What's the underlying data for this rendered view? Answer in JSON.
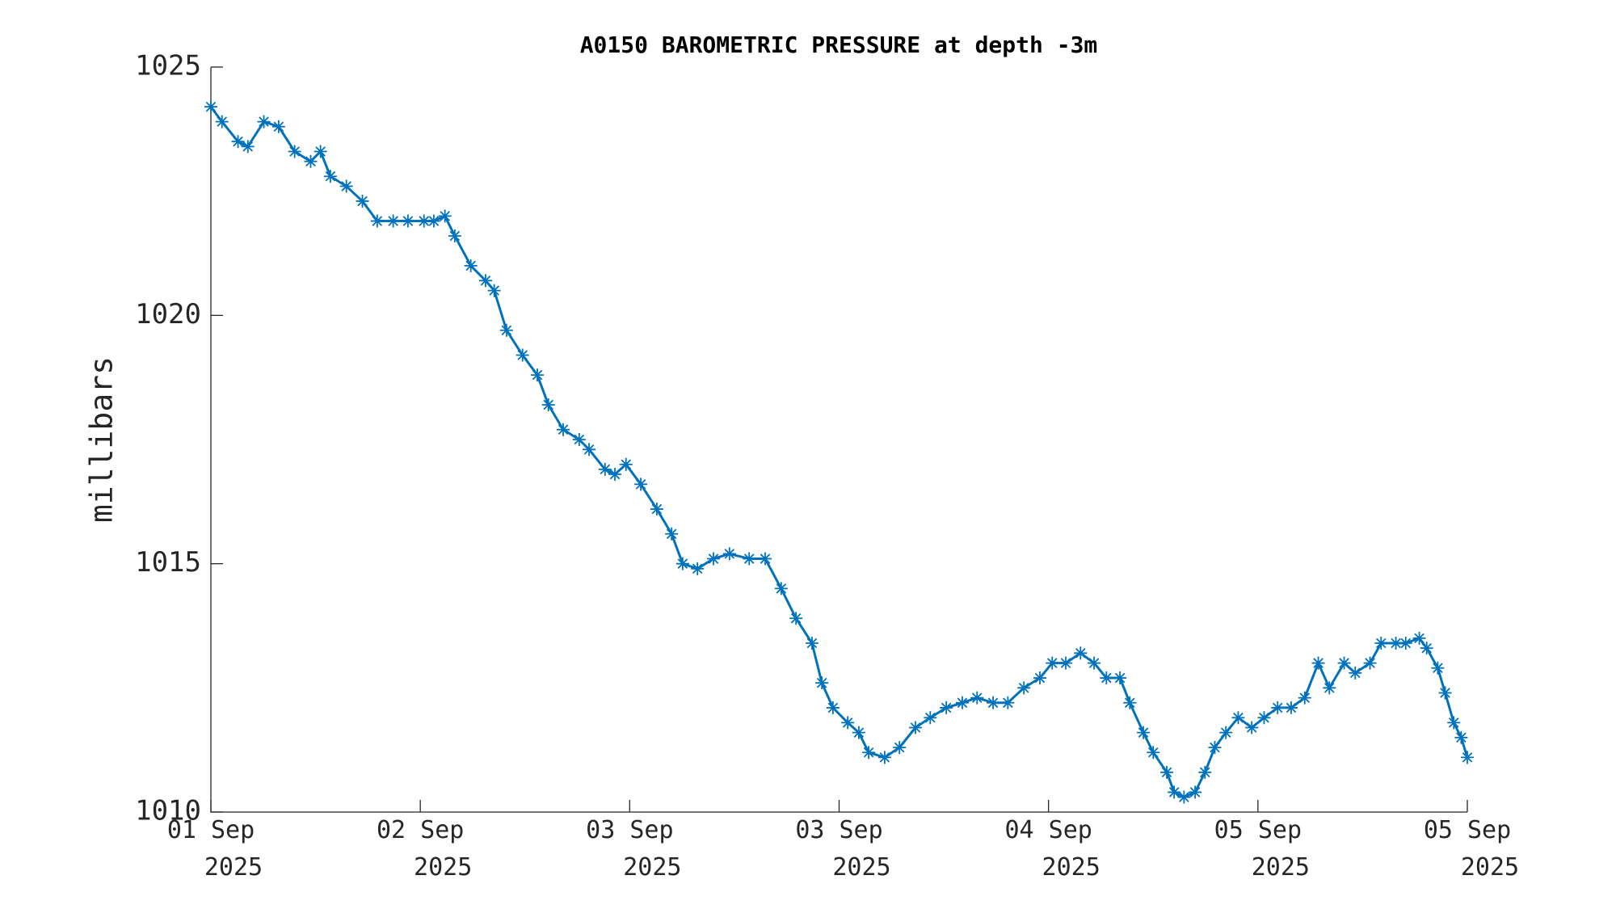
{
  "chart_data": {
    "type": "scatter",
    "title": "A0150 BAROMETRIC PRESSURE at depth -3m",
    "y_label": "millibars",
    "marker": "star",
    "color": "#0072bd",
    "x": [
      0,
      0.9,
      2.2,
      3.0,
      4.3,
      5.5,
      6.8,
      8.1,
      8.9,
      9.7,
      11.0,
      12.3,
      13.5,
      14.8,
      16.0,
      17.3,
      18.1,
      19.0,
      19.8,
      21.1,
      22.3,
      23.0,
      24.0,
      25.3,
      26.5,
      27.4,
      28.6,
      29.9,
      30.7,
      32.0,
      32.8,
      33.7,
      34.9,
      36.2,
      37.4,
      38.3,
      39.5,
      40.8,
      42.1,
      43.7,
      45.0,
      46.3,
      47.5,
      48.8,
      49.6,
      50.5,
      51.7,
      52.6,
      53.4,
      54.7,
      55.9,
      57.2,
      58.4,
      59.7,
      61.0,
      62.2,
      63.5,
      64.7,
      66.0,
      67.3,
      68.3,
      69.4,
      70.6,
      71.7,
      72.7,
      73.8,
      74.6,
      75.7,
      76.5,
      77.6,
      78.2,
      79.0,
      79.9,
      80.7,
      81.5,
      82.4,
      83.4,
      84.5,
      85.5,
      86.6,
      87.7,
      88.8,
      89.9,
      90.8,
      92.0,
      92.9,
      94.1,
      95.0,
      96.2,
      97.0,
      98.1,
      98.7,
      99.6,
      100.2,
      100.9,
      101.5,
      102
    ],
    "values": [
      1024.2,
      1023.9,
      1023.5,
      1023.4,
      1023.9,
      1023.8,
      1023.3,
      1023.1,
      1023.3,
      1022.8,
      1022.6,
      1022.3,
      1021.9,
      1021.9,
      1021.9,
      1021.9,
      1021.9,
      1022.0,
      1021.6,
      1021.0,
      1020.7,
      1020.5,
      1019.7,
      1019.2,
      1018.8,
      1018.2,
      1017.7,
      1017.5,
      1017.3,
      1016.9,
      1016.8,
      1017.0,
      1016.6,
      1016.1,
      1015.6,
      1015.0,
      1014.9,
      1015.1,
      1015.2,
      1015.1,
      1015.1,
      1014.5,
      1013.9,
      1013.4,
      1012.6,
      1012.1,
      1011.8,
      1011.6,
      1011.2,
      1011.1,
      1011.3,
      1011.7,
      1011.9,
      1012.1,
      1012.2,
      1012.3,
      1012.2,
      1012.2,
      1012.5,
      1012.7,
      1013.0,
      1013.0,
      1013.2,
      1013.0,
      1012.7,
      1012.7,
      1012.2,
      1011.6,
      1011.2,
      1010.8,
      1010.4,
      1010.3,
      1010.4,
      1010.8,
      1011.3,
      1011.6,
      1011.9,
      1011.7,
      1011.9,
      1012.1,
      1012.1,
      1012.3,
      1013.0,
      1012.5,
      1013.0,
      1012.8,
      1013.0,
      1013.4,
      1013.4,
      1013.4,
      1013.5,
      1013.3,
      1012.9,
      1012.4,
      1011.8,
      1011.5,
      1011.1
    ],
    "xlim": [
      0,
      102
    ],
    "xticks": [
      {
        "value": 0,
        "label": "01 Sep\n2025"
      },
      {
        "value": 17,
        "label": "02 Sep\n2025"
      },
      {
        "value": 34,
        "label": "03 Sep\n2025"
      },
      {
        "value": 51,
        "label": "03 Sep\n2025"
      },
      {
        "value": 68,
        "label": "04 Sep\n2025"
      },
      {
        "value": 85,
        "label": "05 Sep\n2025"
      },
      {
        "value": 102,
        "label": "05 Sep\n2025"
      }
    ],
    "ylim": [
      1010,
      1025
    ],
    "yticks": [
      1010,
      1015,
      1020,
      1025
    ],
    "grid": false
  }
}
